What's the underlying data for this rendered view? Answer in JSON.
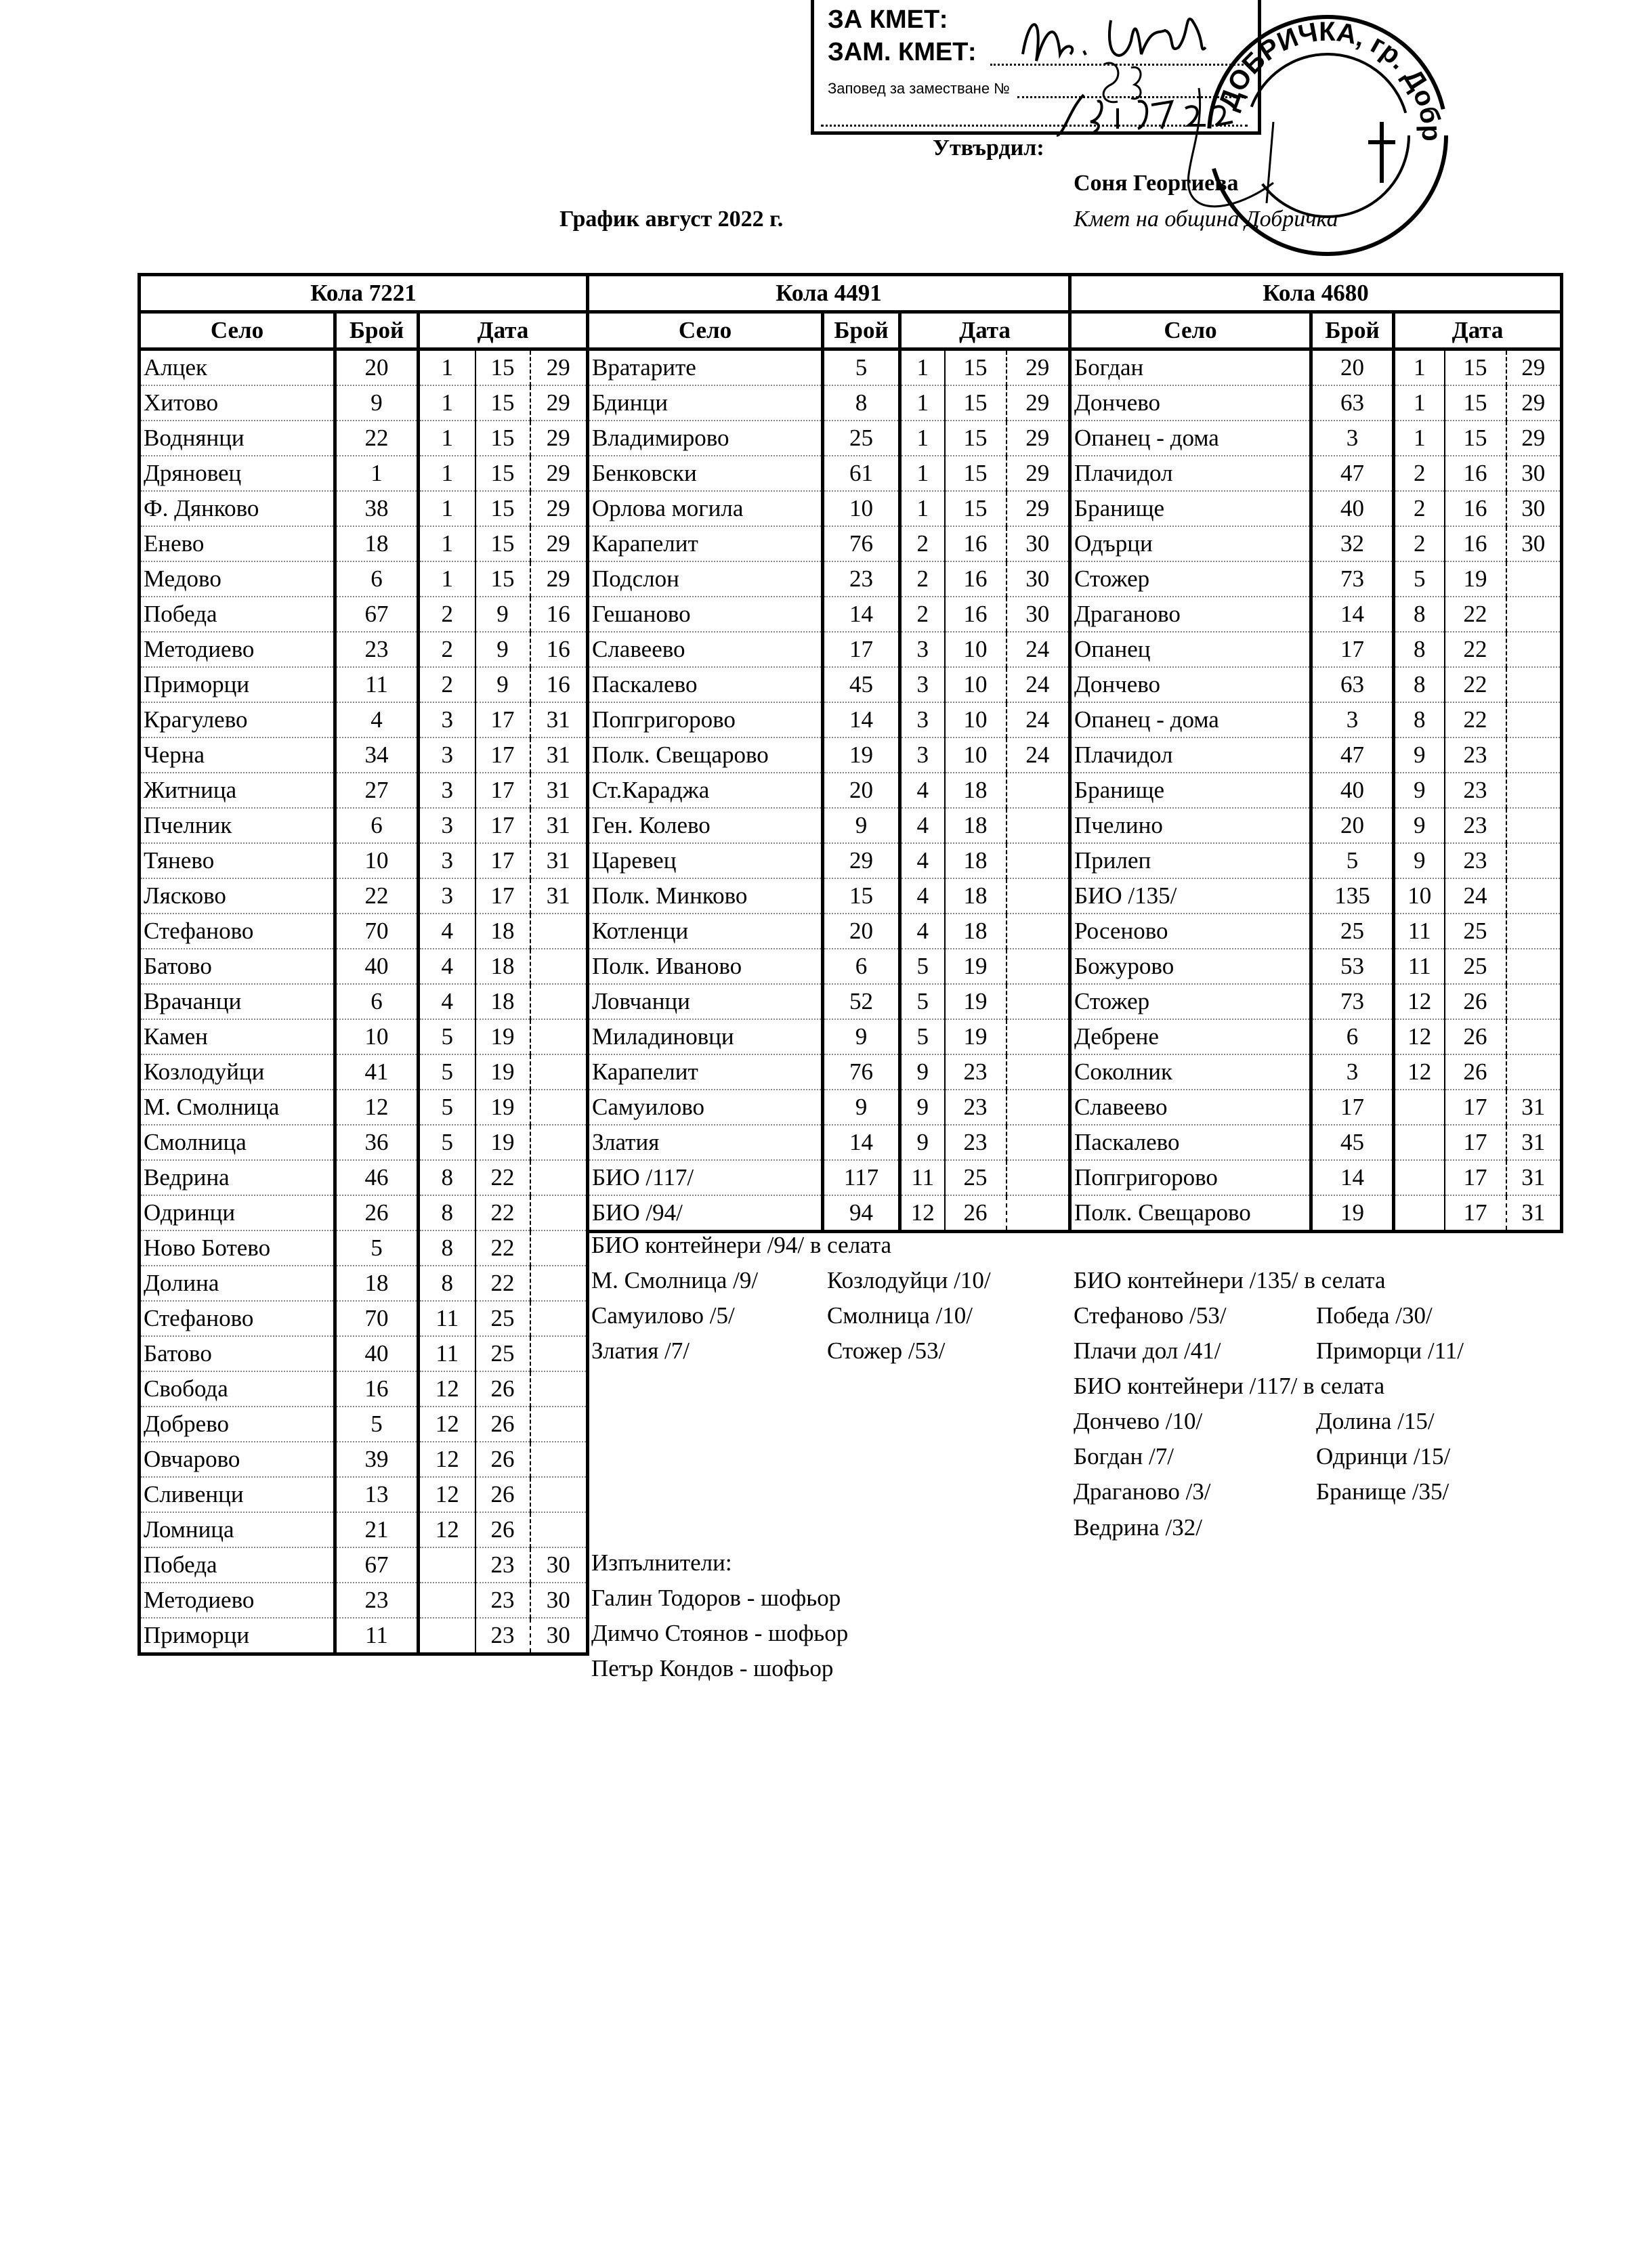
{
  "stamp_box": {
    "line1": "ЗА КМЕТ:",
    "line2": "ЗАМ. КМЕТ:",
    "line3": "Заповед за заместване №",
    "order_number": "883",
    "date_handwritten": "25.07.22"
  },
  "round_stamp": {
    "text": "ДОБРИЧКА, гр. Добрич"
  },
  "header": {
    "approved_label": "Утвърдил:",
    "approver_name": "Соня Георгиева",
    "approver_role": "Кмет  на община Добричка",
    "title": "График август 2022 г."
  },
  "column_headers": {
    "village": "Село",
    "count": "Брой",
    "date": "Дата"
  },
  "tables": [
    {
      "title": "Кола 7221",
      "rows": [
        [
          "Алцек",
          "20",
          "1",
          "15",
          "29"
        ],
        [
          "Хитово",
          "9",
          "1",
          "15",
          "29"
        ],
        [
          "Воднянци",
          "22",
          "1",
          "15",
          "29"
        ],
        [
          "Дряновец",
          "1",
          "1",
          "15",
          "29"
        ],
        [
          "Ф. Дянково",
          "38",
          "1",
          "15",
          "29"
        ],
        [
          "Енево",
          "18",
          "1",
          "15",
          "29"
        ],
        [
          "Медово",
          "6",
          "1",
          "15",
          "29"
        ],
        [
          "Победа",
          "67",
          "2",
          "9",
          "16"
        ],
        [
          "Методиево",
          "23",
          "2",
          "9",
          "16"
        ],
        [
          "Приморци",
          "11",
          "2",
          "9",
          "16"
        ],
        [
          "Крагулево",
          "4",
          "3",
          "17",
          "31"
        ],
        [
          "Черна",
          "34",
          "3",
          "17",
          "31"
        ],
        [
          "Житница",
          "27",
          "3",
          "17",
          "31"
        ],
        [
          "Пчелник",
          "6",
          "3",
          "17",
          "31"
        ],
        [
          "Тянево",
          "10",
          "3",
          "17",
          "31"
        ],
        [
          "Лясково",
          "22",
          "3",
          "17",
          "31"
        ],
        [
          "Стефаново",
          "70",
          "4",
          "18",
          ""
        ],
        [
          "Батово",
          "40",
          "4",
          "18",
          ""
        ],
        [
          "Врачанци",
          "6",
          "4",
          "18",
          ""
        ],
        [
          "Камен",
          "10",
          "5",
          "19",
          ""
        ],
        [
          "Козлодуйци",
          "41",
          "5",
          "19",
          ""
        ],
        [
          "М. Смолница",
          "12",
          "5",
          "19",
          ""
        ],
        [
          "Смолница",
          "36",
          "5",
          "19",
          ""
        ],
        [
          "Ведрина",
          "46",
          "8",
          "22",
          ""
        ],
        [
          "Одринци",
          "26",
          "8",
          "22",
          ""
        ],
        [
          "Ново Ботево",
          "5",
          "8",
          "22",
          ""
        ],
        [
          "Долина",
          "18",
          "8",
          "22",
          ""
        ],
        [
          "Стефаново",
          "70",
          "11",
          "25",
          ""
        ],
        [
          "Батово",
          "40",
          "11",
          "25",
          ""
        ],
        [
          "Свобода",
          "16",
          "12",
          "26",
          ""
        ],
        [
          "Добрево",
          "5",
          "12",
          "26",
          ""
        ],
        [
          "Овчарово",
          "39",
          "12",
          "26",
          ""
        ],
        [
          "Сливенци",
          "13",
          "12",
          "26",
          ""
        ],
        [
          "Ломница",
          "21",
          "12",
          "26",
          ""
        ],
        [
          "Победа",
          "67",
          "",
          "23",
          "30"
        ],
        [
          "Методиево",
          "23",
          "",
          "23",
          "30"
        ],
        [
          "Приморци",
          "11",
          "",
          "23",
          "30"
        ]
      ]
    },
    {
      "title": "Кола 4491",
      "rows": [
        [
          "Вратарите",
          "5",
          "1",
          "15",
          "29"
        ],
        [
          "Бдинци",
          "8",
          "1",
          "15",
          "29"
        ],
        [
          "Владимирово",
          "25",
          "1",
          "15",
          "29"
        ],
        [
          "Бенковски",
          "61",
          "1",
          "15",
          "29"
        ],
        [
          "Орлова могила",
          "10",
          "1",
          "15",
          "29"
        ],
        [
          "Карапелит",
          "76",
          "2",
          "16",
          "30"
        ],
        [
          "Подслон",
          "23",
          "2",
          "16",
          "30"
        ],
        [
          "Гешаново",
          "14",
          "2",
          "16",
          "30"
        ],
        [
          "Славеево",
          "17",
          "3",
          "10",
          "24"
        ],
        [
          "Паскалево",
          "45",
          "3",
          "10",
          "24"
        ],
        [
          "Попгригорово",
          "14",
          "3",
          "10",
          "24"
        ],
        [
          "Полк. Свещарово",
          "19",
          "3",
          "10",
          "24"
        ],
        [
          "Ст.Караджа",
          "20",
          "4",
          "18",
          ""
        ],
        [
          "Ген. Колево",
          "9",
          "4",
          "18",
          ""
        ],
        [
          "Царевец",
          "29",
          "4",
          "18",
          ""
        ],
        [
          "Полк. Минково",
          "15",
          "4",
          "18",
          ""
        ],
        [
          "Котленци",
          "20",
          "4",
          "18",
          ""
        ],
        [
          "Полк. Иваново",
          "6",
          "5",
          "19",
          ""
        ],
        [
          "Ловчанци",
          "52",
          "5",
          "19",
          ""
        ],
        [
          "Миладиновци",
          "9",
          "5",
          "19",
          ""
        ],
        [
          "Карапелит",
          "76",
          "9",
          "23",
          ""
        ],
        [
          "Самуилово",
          "9",
          "9",
          "23",
          ""
        ],
        [
          "Златия",
          "14",
          "9",
          "23",
          ""
        ],
        [
          "БИО /117/",
          "117",
          "11",
          "25",
          ""
        ],
        [
          "БИО /94/",
          "94",
          "12",
          "26",
          ""
        ]
      ]
    },
    {
      "title": "Кола 4680",
      "rows": [
        [
          "Богдан",
          "20",
          "1",
          "15",
          "29"
        ],
        [
          "Дончево",
          "63",
          "1",
          "15",
          "29"
        ],
        [
          "Опанец - дома",
          "3",
          "1",
          "15",
          "29"
        ],
        [
          "Плачидол",
          "47",
          "2",
          "16",
          "30"
        ],
        [
          "Бранище",
          "40",
          "2",
          "16",
          "30"
        ],
        [
          "Одърци",
          "32",
          "2",
          "16",
          "30"
        ],
        [
          "Стожер",
          "73",
          "5",
          "19",
          ""
        ],
        [
          "Драганово",
          "14",
          "8",
          "22",
          ""
        ],
        [
          "Опанец",
          "17",
          "8",
          "22",
          ""
        ],
        [
          "Дончево",
          "63",
          "8",
          "22",
          ""
        ],
        [
          "Опанец - дома",
          "3",
          "8",
          "22",
          ""
        ],
        [
          "Плачидол",
          "47",
          "9",
          "23",
          ""
        ],
        [
          "Бранище",
          "40",
          "9",
          "23",
          ""
        ],
        [
          "Пчелино",
          "20",
          "9",
          "23",
          ""
        ],
        [
          "Прилеп",
          "5",
          "9",
          "23",
          ""
        ],
        [
          "БИО /135/",
          "135",
          "10",
          "24",
          ""
        ],
        [
          "Росеново",
          "25",
          "11",
          "25",
          ""
        ],
        [
          "Божурово",
          "53",
          "11",
          "25",
          ""
        ],
        [
          "Стожер",
          "73",
          "12",
          "26",
          ""
        ],
        [
          "Дебрене",
          "6",
          "12",
          "26",
          ""
        ],
        [
          "Соколник",
          "3",
          "12",
          "26",
          ""
        ],
        [
          "Славеево",
          "17",
          "",
          "17",
          "31"
        ],
        [
          "Паскалево",
          "45",
          "",
          "17",
          "31"
        ],
        [
          "Попгригорово",
          "14",
          "",
          "17",
          "31"
        ],
        [
          "Полк. Свещарово",
          "19",
          "",
          "17",
          "31"
        ]
      ]
    }
  ],
  "notes": {
    "lines": [
      [
        "БИО контейнери /94/ в селата",
        "",
        "",
        ""
      ],
      [
        "М. Смолница /9/",
        "Козлодуйци /10/",
        "БИО контейнери /135/ в селата",
        ""
      ],
      [
        "Самуилово /5/",
        "Смолница /10/",
        "Стефаново /53/",
        "Победа /30/"
      ],
      [
        "Златия /7/",
        "Стожер /53/",
        "Плачи дол /41/",
        "Приморци /11/"
      ],
      [
        "",
        "",
        "БИО контейнери /117/ в селата",
        ""
      ],
      [
        "",
        "",
        "Дончево /10/",
        "Долина /15/"
      ],
      [
        "",
        "",
        "Богдан /7/",
        "Одринци /15/"
      ],
      [
        "",
        "",
        "Драганово /3/",
        "Бранище /35/"
      ],
      [
        "",
        "",
        "Ведрина /32/",
        ""
      ]
    ]
  },
  "executors": {
    "label": "Изпълнители:",
    "names": [
      "Галин Тодоров - шофьор",
      "Димчо Стоянов - шофьор",
      "Петър Кондов - шофьор"
    ]
  }
}
